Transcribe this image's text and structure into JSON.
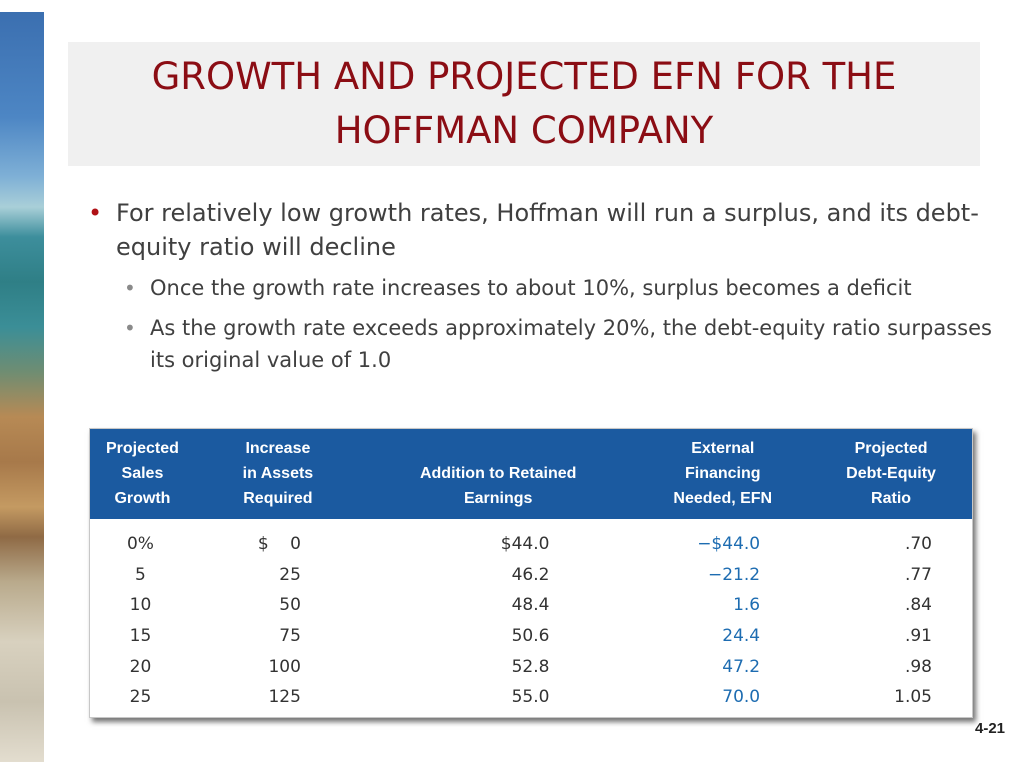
{
  "slide": {
    "title": "GROWTH AND PROJECTED EFN FOR THE HOFFMAN COMPANY",
    "page_number": "4-21"
  },
  "bullets": [
    {
      "text": "For relatively low growth rates, Hoffman will run a surplus, and its debt-equity ratio will decline",
      "sub": [
        "Once the growth rate increases to about 10%, surplus becomes a deficit",
        "As the growth rate exceeds approximately 20%, the debt-equity ratio surpasses its original value of 1.0"
      ]
    }
  ],
  "table": {
    "headers": [
      "Projected\nSales\nGrowth",
      "Increase\nin Assets\nRequired",
      "Addition to Retained\nEarnings",
      "External\nFinancing\nNeeded, EFN",
      "Projected\nDebt-Equity\nRatio"
    ],
    "rows": [
      [
        "0%",
        "0",
        "$44.0",
        "−$44.0",
        ".70"
      ],
      [
        "5",
        "25",
        "46.2",
        "−21.2",
        ".77"
      ],
      [
        "10",
        "50",
        "48.4",
        "1.6",
        ".84"
      ],
      [
        "15",
        "75",
        "50.6",
        "24.4",
        ".91"
      ],
      [
        "20",
        "100",
        "52.8",
        "47.2",
        ".98"
      ],
      [
        "25",
        "125",
        "55.0",
        "70.0",
        "1.05"
      ]
    ],
    "first_row_asset_prefix": "$"
  },
  "colors": {
    "title": "#8b0d14",
    "title_bg": "#f0f0f0",
    "header_bg": "#1b5aa0",
    "efn_text": "#1d6cb1",
    "bullet_main": "#b01116"
  }
}
